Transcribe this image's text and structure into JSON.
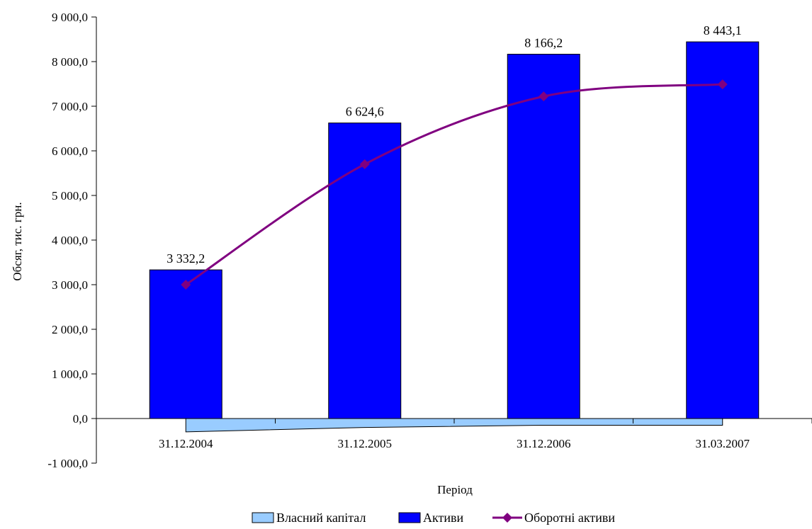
{
  "chart_data": {
    "type": "bar",
    "xlabel": "Період",
    "ylabel": "Обсяг, тис. грн.",
    "ylim": [
      -1000,
      9000
    ],
    "yticks": [
      "-1 000,0",
      "0,0",
      "1 000,0",
      "2 000,0",
      "3 000,0",
      "4 000,0",
      "5 000,0",
      "6 000,0",
      "7 000,0",
      "8 000,0",
      "9 000,0"
    ],
    "ytick_values": [
      -1000,
      0,
      1000,
      2000,
      3000,
      4000,
      5000,
      6000,
      7000,
      8000,
      9000
    ],
    "categories": [
      "31.12.2004",
      "31.12.2005",
      "31.12.2006",
      "31.03.2007"
    ],
    "legend_position": "bottom",
    "grid": false,
    "series": [
      {
        "name": "Власний капітал",
        "type": "area",
        "color": "#99ccff",
        "values": [
          -300,
          -200,
          -150,
          -150
        ]
      },
      {
        "name": "Активи",
        "type": "bar",
        "color": "#0000ff",
        "values": [
          3332.2,
          6624.6,
          8166.2,
          8443.1
        ],
        "labels": [
          "3 332,2",
          "6 624,6",
          "8 166,2",
          "8 443,1"
        ]
      },
      {
        "name": "Оборотні активи",
        "type": "line",
        "color": "#800080",
        "marker": "diamond",
        "values": [
          3000,
          5700,
          7220,
          7490
        ]
      }
    ]
  }
}
